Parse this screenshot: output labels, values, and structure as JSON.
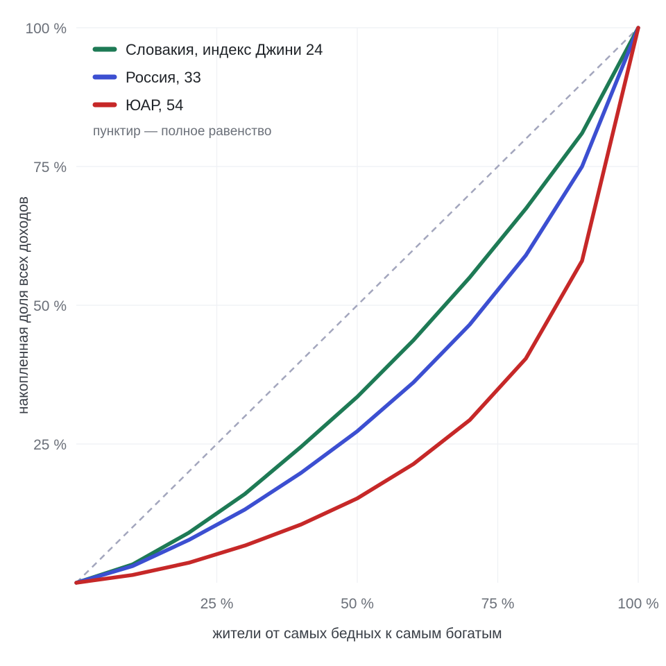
{
  "chart_data": {
    "type": "line",
    "xlabel": "жители от самых бедных к самым богатым",
    "ylabel": "накопленная доля всех доходов",
    "xlim": [
      0,
      100
    ],
    "ylim": [
      0,
      100
    ],
    "x_ticks": [
      "25 %",
      "50 %",
      "75 %",
      "100 %"
    ],
    "y_ticks": [
      "25 %",
      "50 %",
      "75 %",
      "100 %"
    ],
    "grid": true,
    "legend_position": "top-left",
    "equality_line": {
      "x": [
        0,
        100
      ],
      "y": [
        0,
        100
      ],
      "color": "#a3a6bd"
    },
    "note": "пунктир — полное равенство",
    "x": [
      0,
      10,
      20,
      30,
      40,
      50,
      60,
      70,
      80,
      90,
      100
    ],
    "series": [
      {
        "name": "Словакия, индекс Джини 24",
        "color": "#1e7a55",
        "values": [
          0,
          3.3,
          9,
          16,
          24.5,
          33.5,
          43.7,
          55,
          67.4,
          81,
          100
        ]
      },
      {
        "name": "Россия, 33",
        "color": "#3c4fd1",
        "values": [
          0,
          3,
          7.7,
          13.2,
          19.8,
          27.3,
          36.1,
          46.5,
          59,
          75,
          100
        ]
      },
      {
        "name": "ЮАР, 54",
        "color": "#c62828",
        "values": [
          0,
          1.4,
          3.6,
          6.7,
          10.5,
          15.2,
          21.4,
          29.3,
          40.4,
          58,
          100
        ]
      }
    ]
  }
}
